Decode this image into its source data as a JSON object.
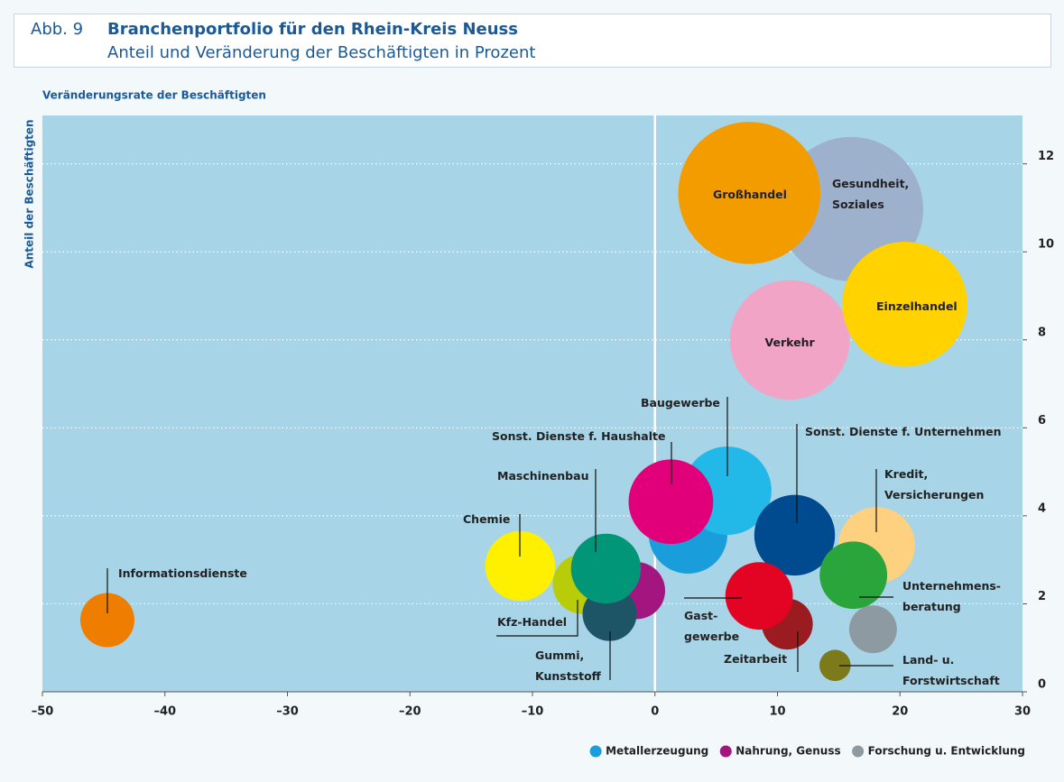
{
  "header": {
    "figure": "Abb. 9",
    "title": "Branchenportfolio für den Rhein-Kreis Neuss",
    "subtitle": "Anteil und Veränderung der Beschäftigten in Prozent"
  },
  "chart_data": {
    "type": "scatter",
    "xlabel": "Veränderungsrate der Beschäftigten",
    "ylabel": "Anteil der Beschäftigten",
    "xlim": [
      -50,
      30
    ],
    "ylim": [
      0,
      13.1
    ],
    "xticks": [
      {
        "value": -50,
        "label": "–50"
      },
      {
        "value": -40,
        "label": "–40"
      },
      {
        "value": -30,
        "label": "–30"
      },
      {
        "value": -20,
        "label": "–20"
      },
      {
        "value": -10,
        "label": "–10"
      },
      0,
      10,
      20,
      30
    ],
    "yticks": [
      0,
      2,
      4,
      6,
      8,
      10,
      12
    ],
    "grid": true,
    "series": [
      {
        "name": "Informationsdienste",
        "color": "#ef7d00",
        "x": [
          -44.7
        ],
        "values": [
          1.63
        ],
        "sizes": [
          9
        ]
      },
      {
        "name": "Gesundheit,\nSoziales",
        "color": "#9db0cc",
        "x": [
          16.0
        ],
        "values": [
          10.97
        ],
        "sizes": [
          64
        ]
      },
      {
        "name": "Großhandel",
        "color": "#f39c00",
        "x": [
          7.7
        ],
        "values": [
          11.34
        ],
        "sizes": [
          62
        ]
      },
      {
        "name": "Verkehr",
        "color": "#f1a4c6",
        "x": [
          11.0
        ],
        "values": [
          8.0
        ],
        "sizes": [
          44
        ]
      },
      {
        "name": "Einzelhandel",
        "color": "#ffd200",
        "x": [
          20.4
        ],
        "values": [
          8.81
        ],
        "sizes": [
          48
        ]
      },
      {
        "name": "Metallerzeugung",
        "color": "#1a9ddb",
        "x": [
          2.7
        ],
        "values": [
          3.58
        ],
        "sizes": [
          19
        ],
        "legend": true
      },
      {
        "name": "Baugewerbe",
        "color": "#22b8e8",
        "x": [
          5.9
        ],
        "values": [
          4.57
        ],
        "sizes": [
          24
        ]
      },
      {
        "name": "Sonst. Dienste f. Haushalte",
        "color": "#e2007a",
        "x": [
          1.3
        ],
        "values": [
          4.32
        ],
        "sizes": [
          22
        ]
      },
      {
        "name": "Chemie",
        "color": "#fff000",
        "x": [
          -11.0
        ],
        "values": [
          2.86
        ],
        "sizes": [
          15
        ]
      },
      {
        "name": "Kfz-Handel",
        "color": "#b8cc0a",
        "x": [
          -5.9
        ],
        "values": [
          2.45
        ],
        "sizes": [
          11
        ]
      },
      {
        "name": "Nahrung, Genuss",
        "color": "#a3157f",
        "x": [
          -1.5
        ],
        "values": [
          2.3
        ],
        "sizes": [
          10
        ],
        "legend": true
      },
      {
        "name": "Gummi,\nKunststoff",
        "color": "#1e5566",
        "x": [
          -3.7
        ],
        "values": [
          1.77
        ],
        "sizes": [
          9
        ]
      },
      {
        "name": "Maschinenbau",
        "color": "#009677",
        "x": [
          -4.0
        ],
        "values": [
          2.8
        ],
        "sizes": [
          15
        ]
      },
      {
        "name": "Kredit,\nVersicherungen",
        "color": "#fdd17f",
        "x": [
          18.1
        ],
        "values": [
          3.33
        ],
        "sizes": [
          18
        ]
      },
      {
        "name": "Sonst. Dienste f. Unternehmen",
        "color": "#004a8f",
        "x": [
          11.4
        ],
        "values": [
          3.56
        ],
        "sizes": [
          20
        ]
      },
      {
        "name": "Unternehmens-\nberatung",
        "color": "#2aa53b",
        "x": [
          16.2
        ],
        "values": [
          2.65
        ],
        "sizes": [
          14
        ]
      },
      {
        "name": "Forschung u. Entwicklung",
        "color": "#8d9aa2",
        "x": [
          17.8
        ],
        "values": [
          1.42
        ],
        "sizes": [
          7
        ],
        "legend": true
      },
      {
        "name": "Zeitarbeit",
        "color": "#9b1c20",
        "x": [
          10.8
        ],
        "values": [
          1.54
        ],
        "sizes": [
          8
        ]
      },
      {
        "name": "Gast-\ngewerbe",
        "color": "#e30424",
        "x": [
          8.5
        ],
        "values": [
          2.18
        ],
        "sizes": [
          14
        ]
      },
      {
        "name": "Land- u.\nForstwirtschaft",
        "color": "#7d7a1b",
        "x": [
          14.7
        ],
        "values": [
          0.6
        ],
        "sizes": [
          3
        ]
      }
    ]
  }
}
